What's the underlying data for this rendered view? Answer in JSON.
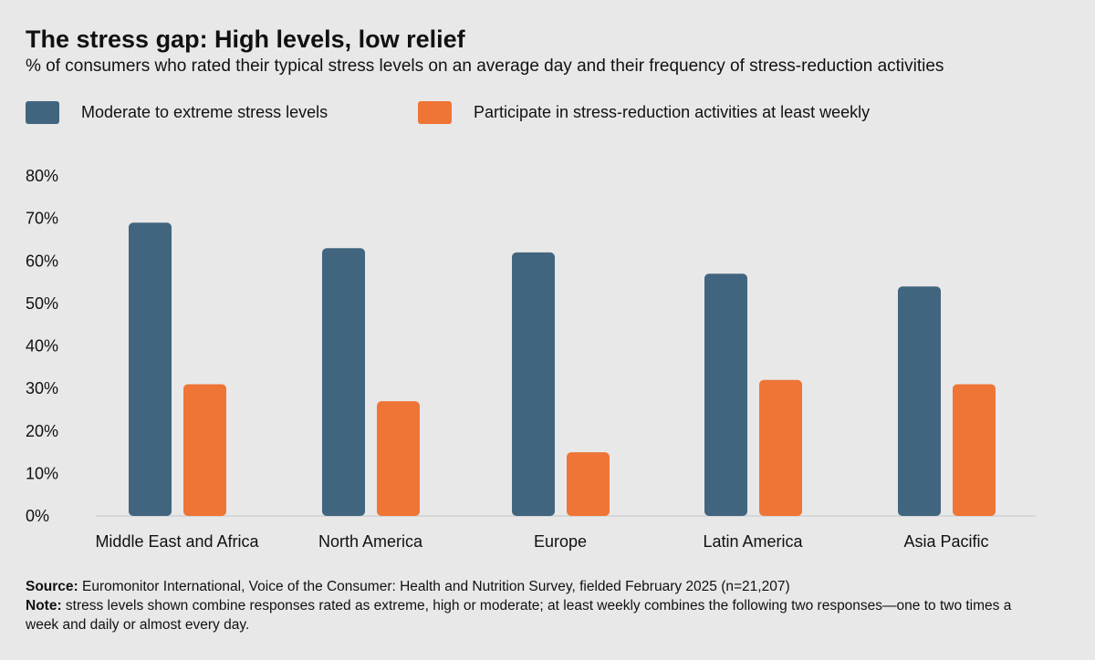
{
  "chart_data": {
    "type": "bar",
    "title": "The stress gap: High levels, low relief",
    "subtitle": "% of consumers who rated their typical stress levels on an average day and their frequency of stress-reduction activities",
    "categories": [
      "Middle East and Africa",
      "North America",
      "Europe",
      "Latin America",
      "Asia Pacific"
    ],
    "series": [
      {
        "name": "Moderate to extreme stress levels",
        "color": "#41657e",
        "values": [
          69,
          63,
          62,
          57,
          54
        ]
      },
      {
        "name": "Participate in stress-reduction activities at least weekly",
        "color": "#ee7536",
        "values": [
          31,
          27,
          15,
          32,
          31
        ]
      }
    ],
    "ylim": [
      0,
      80
    ],
    "yticks": [
      "0%",
      "10%",
      "20%",
      "30%",
      "40%",
      "50%",
      "60%",
      "70%",
      "80%"
    ],
    "grid": false,
    "legend": "top-left"
  },
  "footer": {
    "source_label": "Source:",
    "source_text": " Euromonitor International, Voice of the Consumer: Health and Nutrition Survey, fielded February 2025 (n=21,207)",
    "note_label": "Note:",
    "note_text": " stress levels shown combine responses rated as extreme, high or moderate; at least weekly combines the following two responses—one to two times a week and daily or almost every day."
  }
}
